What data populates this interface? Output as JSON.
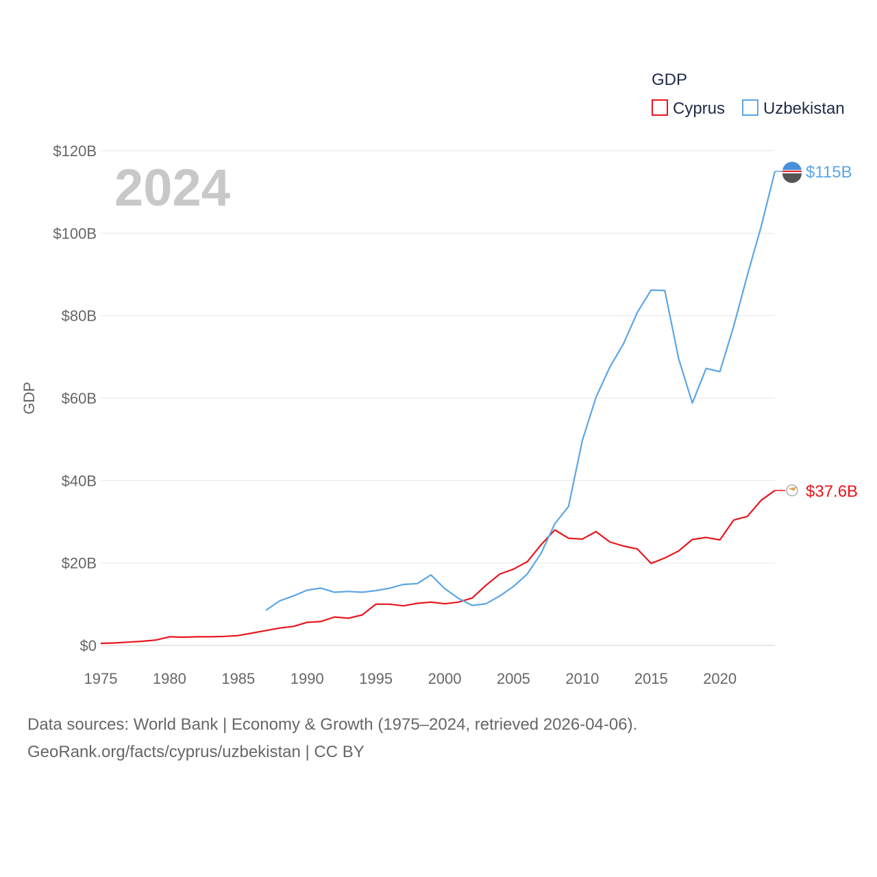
{
  "chart_data": {
    "type": "line",
    "title": "GDP",
    "ylabel": "GDP",
    "xlabel": "",
    "current_year_label": "2024",
    "xlim": [
      1975,
      2024
    ],
    "ylim": [
      0,
      120
    ],
    "y_unit": "billion USD",
    "x_ticks": [
      1975,
      1980,
      1985,
      1990,
      1995,
      2000,
      2005,
      2010,
      2015,
      2020
    ],
    "y_ticks": [
      0,
      20,
      40,
      60,
      80,
      100,
      120
    ],
    "y_tick_labels": [
      "$0",
      "$20B",
      "$40B",
      "$60B",
      "$80B",
      "$100B",
      "$120B"
    ],
    "legend": {
      "title": "GDP",
      "position": "top-right"
    },
    "grid": true,
    "series": [
      {
        "name": "Cyprus",
        "color": "#e8141c",
        "end_label": "$37.6B",
        "x": [
          1975,
          1976,
          1977,
          1978,
          1979,
          1980,
          1981,
          1982,
          1983,
          1984,
          1985,
          1986,
          1987,
          1988,
          1989,
          1990,
          1991,
          1992,
          1993,
          1994,
          1995,
          1996,
          1997,
          1998,
          1999,
          2000,
          2001,
          2002,
          2003,
          2004,
          2005,
          2006,
          2007,
          2008,
          2009,
          2010,
          2011,
          2012,
          2013,
          2014,
          2015,
          2016,
          2017,
          2018,
          2019,
          2020,
          2021,
          2022,
          2023,
          2024
        ],
        "values": [
          0.5,
          0.6,
          0.8,
          1.0,
          1.3,
          2.1,
          2.0,
          2.1,
          2.1,
          2.2,
          2.4,
          3.0,
          3.6,
          4.2,
          4.6,
          5.6,
          5.8,
          6.9,
          6.6,
          7.4,
          10.0,
          10.0,
          9.6,
          10.2,
          10.5,
          10.1,
          10.5,
          11.5,
          14.6,
          17.3,
          18.5,
          20.3,
          24.4,
          28.0,
          26.0,
          25.8,
          27.6,
          25.1,
          24.1,
          23.4,
          19.9,
          21.2,
          22.9,
          25.7,
          26.2,
          25.6,
          30.4,
          31.3,
          35.2,
          37.6
        ]
      },
      {
        "name": "Uzbekistan",
        "color": "#5aa5e6",
        "end_label": "$115B",
        "x": [
          1987,
          1988,
          1989,
          1990,
          1991,
          1992,
          1993,
          1994,
          1995,
          1996,
          1997,
          1998,
          1999,
          2000,
          2001,
          2002,
          2003,
          2004,
          2005,
          2006,
          2007,
          2008,
          2009,
          2010,
          2011,
          2012,
          2013,
          2014,
          2015,
          2016,
          2017,
          2018,
          2019,
          2020,
          2021,
          2022,
          2023,
          2024
        ],
        "values": [
          8.5,
          10.8,
          12.0,
          13.4,
          13.9,
          12.9,
          13.1,
          12.9,
          13.3,
          13.9,
          14.8,
          15.0,
          17.1,
          13.8,
          11.4,
          9.7,
          10.1,
          12.0,
          14.3,
          17.3,
          22.3,
          29.5,
          33.7,
          49.7,
          60.2,
          67.5,
          73.2,
          80.8,
          86.2,
          86.1,
          69.6,
          58.8,
          67.2,
          66.4,
          77.4,
          89.8,
          101.6,
          115.0
        ]
      }
    ]
  },
  "footer": {
    "line1": "Data sources: World Bank | Economy & Growth (1975–2024, retrieved 2026-04-06).",
    "line2": "GeoRank.org/facts/cyprus/uzbekistan | CC BY"
  }
}
